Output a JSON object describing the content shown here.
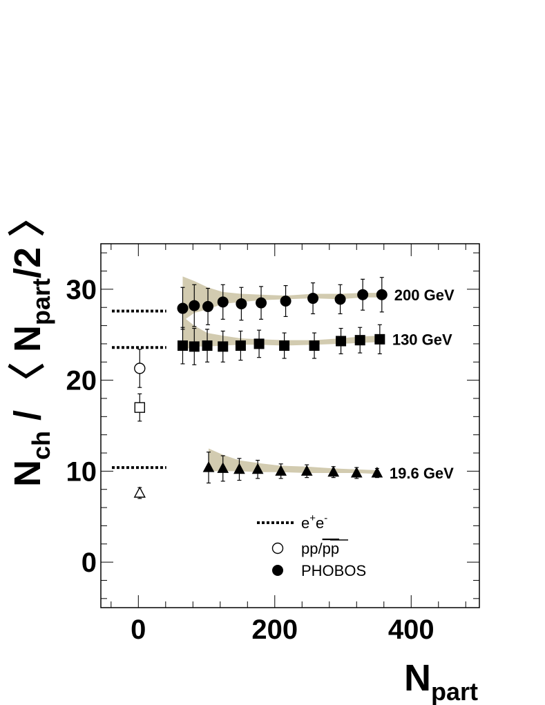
{
  "chart_data": {
    "type": "scatter",
    "xlim": [
      -55,
      500
    ],
    "ylim": [
      -5,
      35
    ],
    "x_ticks": [
      0,
      200,
      400
    ],
    "y_ticks": [
      0,
      10,
      20,
      30
    ],
    "x_tick_labels": [
      "0",
      "200",
      "400"
    ],
    "y_tick_labels": [
      "0",
      "10",
      "20",
      "30"
    ],
    "xlabel": {
      "main": "N",
      "sub": "part"
    },
    "ylabel": {
      "main": "N",
      "sub": "ch",
      "mid": " / 〈 N",
      "sub2": "part",
      "end": "/2 〉"
    },
    "grid": false,
    "colors": {
      "band": "#d2cbb0",
      "marker": "#000000"
    },
    "series": [
      {
        "name": "200 GeV",
        "marker": "circle-filled",
        "points": [
          {
            "x": 65,
            "y": 27.9,
            "err": 2.3
          },
          {
            "x": 82,
            "y": 28.2,
            "err": 2.3
          },
          {
            "x": 102,
            "y": 28.1,
            "err": 2.0
          },
          {
            "x": 124,
            "y": 28.6,
            "err": 1.9
          },
          {
            "x": 151,
            "y": 28.4,
            "err": 1.8
          },
          {
            "x": 180,
            "y": 28.5,
            "err": 1.8
          },
          {
            "x": 216,
            "y": 28.7,
            "err": 1.7
          },
          {
            "x": 256,
            "y": 29.0,
            "err": 1.7
          },
          {
            "x": 296,
            "y": 28.9,
            "err": 1.6
          },
          {
            "x": 329,
            "y": 29.4,
            "err": 1.7
          },
          {
            "x": 357,
            "y": 29.4,
            "err": 1.9
          }
        ],
        "band": {
          "x": [
            65,
            82,
            102,
            124,
            151,
            180,
            216,
            256,
            296,
            329,
            357
          ],
          "lower": [
            26.5,
            27.4,
            27.8,
            28.4,
            28.6,
            28.8,
            28.9,
            29.0,
            28.9,
            29.1,
            29.1
          ],
          "upper": [
            31.4,
            30.9,
            30.2,
            29.7,
            29.5,
            29.4,
            29.3,
            29.5,
            29.5,
            29.6,
            29.6
          ]
        },
        "ee_reference": 27.6
      },
      {
        "name": "130 GeV",
        "marker": "square-filled",
        "points": [
          {
            "x": 65,
            "y": 23.8,
            "err": 2.0
          },
          {
            "x": 82,
            "y": 23.7,
            "err": 2.0
          },
          {
            "x": 101,
            "y": 23.8,
            "err": 1.8
          },
          {
            "x": 124,
            "y": 23.7,
            "err": 1.7
          },
          {
            "x": 150,
            "y": 23.8,
            "err": 1.6
          },
          {
            "x": 177,
            "y": 24.0,
            "err": 1.5
          },
          {
            "x": 214,
            "y": 23.8,
            "err": 1.4
          },
          {
            "x": 258,
            "y": 23.8,
            "err": 1.4
          },
          {
            "x": 297,
            "y": 24.3,
            "err": 1.4
          },
          {
            "x": 325,
            "y": 24.4,
            "err": 1.4
          },
          {
            "x": 354,
            "y": 24.5,
            "err": 1.6
          }
        ],
        "band": {
          "x": [
            65,
            82,
            101,
            124,
            150,
            177,
            214,
            258,
            297,
            325,
            354
          ],
          "lower": [
            23.3,
            23.7,
            23.7,
            23.8,
            23.9,
            23.9,
            23.8,
            23.9,
            24.0,
            24.1,
            24.2
          ],
          "upper": [
            27.0,
            26.0,
            25.2,
            24.9,
            24.6,
            24.5,
            24.4,
            24.4,
            24.6,
            24.8,
            24.9
          ]
        },
        "ee_reference": 23.6
      },
      {
        "name": "19.6 GeV",
        "marker": "triangle-filled",
        "points": [
          {
            "x": 103,
            "y": 10.4,
            "err": 1.7
          },
          {
            "x": 124,
            "y": 10.3,
            "err": 1.4
          },
          {
            "x": 148,
            "y": 10.2,
            "err": 1.2
          },
          {
            "x": 175,
            "y": 10.2,
            "err": 1.0
          },
          {
            "x": 209,
            "y": 10.0,
            "err": 0.8
          },
          {
            "x": 247,
            "y": 10.0,
            "err": 0.7
          },
          {
            "x": 286,
            "y": 9.9,
            "err": 0.6
          },
          {
            "x": 320,
            "y": 9.8,
            "err": 0.6
          },
          {
            "x": 350,
            "y": 9.8,
            "err": 0.5
          }
        ],
        "band": {
          "x": [
            103,
            124,
            148,
            175,
            209,
            247,
            286,
            320,
            350
          ],
          "lower": [
            10.0,
            10.0,
            10.0,
            9.9,
            9.9,
            9.8,
            9.8,
            9.8,
            9.7
          ],
          "upper": [
            12.5,
            11.8,
            11.2,
            10.9,
            10.6,
            10.5,
            10.3,
            10.2,
            10.1
          ]
        },
        "ee_reference": 10.4
      }
    ],
    "pp_points": [
      {
        "x": 2,
        "y": 21.3,
        "err": 2.1,
        "marker": "circle-open"
      },
      {
        "x": 2,
        "y": 17.0,
        "err": 1.5,
        "marker": "square-open"
      },
      {
        "x": 2,
        "y": 7.6,
        "err": 0.6,
        "marker": "triangle-open"
      }
    ],
    "ee_x_range": [
      -55,
      45
    ],
    "legend": {
      "position": "bottom-center",
      "entries": [
        {
          "label_main": "e",
          "label_sup1": "+",
          "label_mid": "e",
          "label_sup2": "-",
          "marker": "dotted-line"
        },
        {
          "label": "pp/",
          "label_bar": "pp",
          "marker": "circle-open"
        },
        {
          "label": "PHOBOS",
          "marker": "circle-filled"
        }
      ]
    }
  }
}
